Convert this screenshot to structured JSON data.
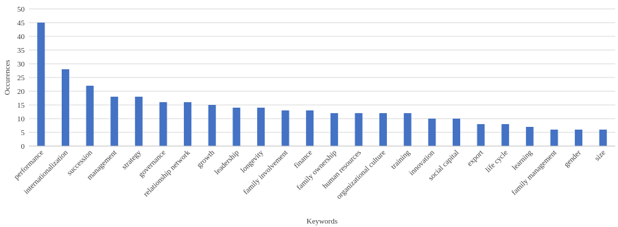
{
  "chart_data": {
    "type": "bar",
    "xlabel": "Keywords",
    "ylabel": "Occurences",
    "ylim": [
      0,
      50
    ],
    "yticks": [
      0,
      5,
      10,
      15,
      20,
      25,
      30,
      35,
      40,
      45,
      50
    ],
    "grid": true,
    "bar_color": "#4472C4",
    "categories": [
      "performance",
      "internationalization",
      "succession",
      "management",
      "strategy",
      "governance",
      "relationship network",
      "growth",
      "leadership",
      "longevity",
      "family involvement",
      "finance",
      "family ownership",
      "human resources",
      "organizational culture",
      "training",
      "innovation",
      "social capital",
      "export",
      "life cycle",
      "learning",
      "family management",
      "gender",
      "size"
    ],
    "values": [
      45,
      28,
      22,
      18,
      18,
      16,
      16,
      15,
      14,
      14,
      13,
      13,
      12,
      12,
      12,
      12,
      10,
      10,
      8,
      8,
      7,
      6,
      6,
      6
    ]
  }
}
